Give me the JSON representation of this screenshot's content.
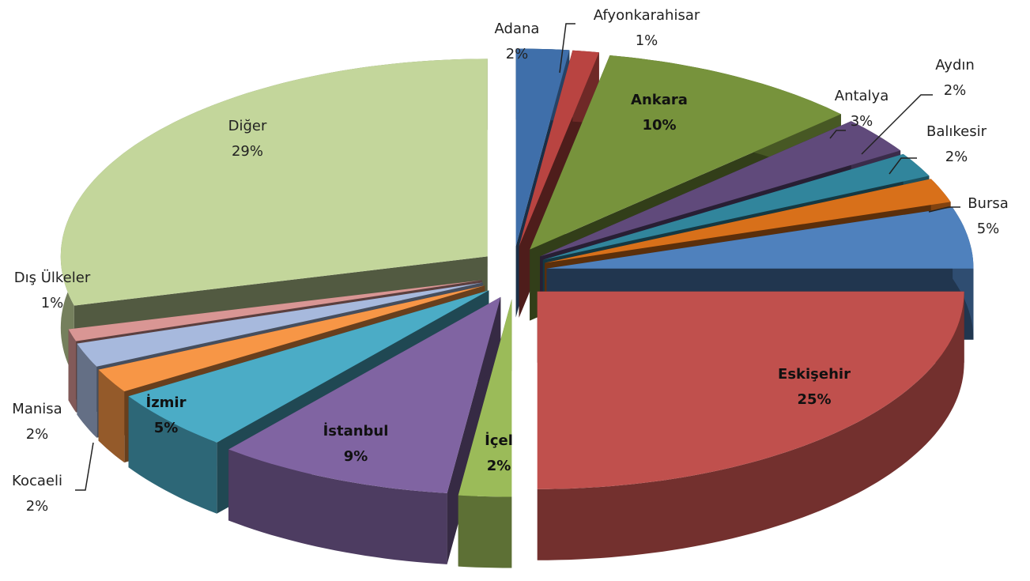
{
  "chart_data": {
    "type": "pie3d",
    "categories": [
      "Adana",
      "Afyonkarahisar",
      "Ankara",
      "Antalya",
      "Aydın",
      "Balıkesir",
      "Bursa",
      "Eskişehir",
      "İçel",
      "İstanbul",
      "İzmir",
      "Kocaeli",
      "Manisa",
      "Dış Ülkeler",
      "Diğer"
    ],
    "values": [
      2,
      1,
      10,
      3,
      2,
      2,
      5,
      25,
      2,
      9,
      5,
      2,
      2,
      1,
      29
    ],
    "value_labels": [
      "2%",
      "1%",
      "10%",
      "3%",
      "2%",
      "2%",
      "5%",
      "25%",
      "2%",
      "9%",
      "5%",
      "2%",
      "2%",
      "1%",
      "29%"
    ],
    "colors": [
      "#3f6faa",
      "#b94441",
      "#77933c",
      "#604a7b",
      "#31859c",
      "#d8701a",
      "#4f81bd",
      "#c0504d",
      "#9bbb59",
      "#8064a2",
      "#4bacc6",
      "#f79646",
      "#a7b9dd",
      "#d99694",
      "#c3d69b"
    ]
  }
}
